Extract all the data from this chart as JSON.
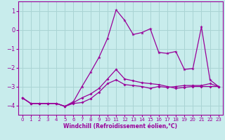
{
  "xlabel": "Windchill (Refroidissement éolien,°C)",
  "bg_color": "#c8ecec",
  "grid_color": "#aad4d4",
  "line_color": "#990099",
  "xlim": [
    -0.5,
    23.5
  ],
  "ylim": [
    -4.5,
    1.5
  ],
  "xticks": [
    0,
    1,
    2,
    3,
    4,
    5,
    6,
    7,
    8,
    9,
    10,
    11,
    12,
    13,
    14,
    15,
    16,
    17,
    18,
    19,
    20,
    21,
    22,
    23
  ],
  "yticks": [
    -4,
    -3,
    -2,
    -1,
    0,
    1
  ],
  "line1_x": [
    0,
    1,
    2,
    3,
    4,
    5,
    6,
    7,
    8,
    9,
    10,
    11,
    12,
    13,
    14,
    15,
    16,
    17,
    18,
    19,
    20,
    21,
    22,
    23
  ],
  "line1_y": [
    -3.6,
    -3.9,
    -3.9,
    -3.9,
    -3.9,
    -4.05,
    -3.9,
    -3.85,
    -3.65,
    -3.3,
    -2.85,
    -2.65,
    -2.9,
    -2.95,
    -3.0,
    -3.1,
    -3.0,
    -3.05,
    -3.0,
    -2.95,
    -2.95,
    -2.95,
    -2.85,
    -3.0
  ],
  "line2_x": [
    0,
    1,
    2,
    3,
    4,
    5,
    6,
    7,
    8,
    9,
    10,
    11,
    12,
    13,
    14,
    15,
    16,
    17,
    18,
    19,
    20,
    21,
    22,
    23
  ],
  "line2_y": [
    -3.6,
    -3.9,
    -3.9,
    -3.9,
    -3.9,
    -4.05,
    -3.85,
    -3.6,
    -3.4,
    -3.1,
    -2.6,
    -2.1,
    -2.6,
    -2.7,
    -2.8,
    -2.85,
    -2.9,
    -3.0,
    -3.1,
    -3.05,
    -3.0,
    -3.0,
    -3.0,
    -3.0
  ],
  "line3_x": [
    0,
    1,
    2,
    3,
    4,
    5,
    6,
    7,
    8,
    9,
    10,
    11,
    12,
    13,
    14,
    15,
    16,
    17,
    18,
    19,
    20,
    21,
    22,
    23
  ],
  "line3_y": [
    -3.6,
    -3.9,
    -3.9,
    -3.9,
    -3.9,
    -4.05,
    -3.8,
    -3.0,
    -2.25,
    -1.45,
    -0.45,
    1.05,
    0.5,
    -0.25,
    -0.15,
    0.05,
    -1.2,
    -1.25,
    -1.15,
    -2.1,
    -2.05,
    0.15,
    -2.65,
    -3.0
  ]
}
